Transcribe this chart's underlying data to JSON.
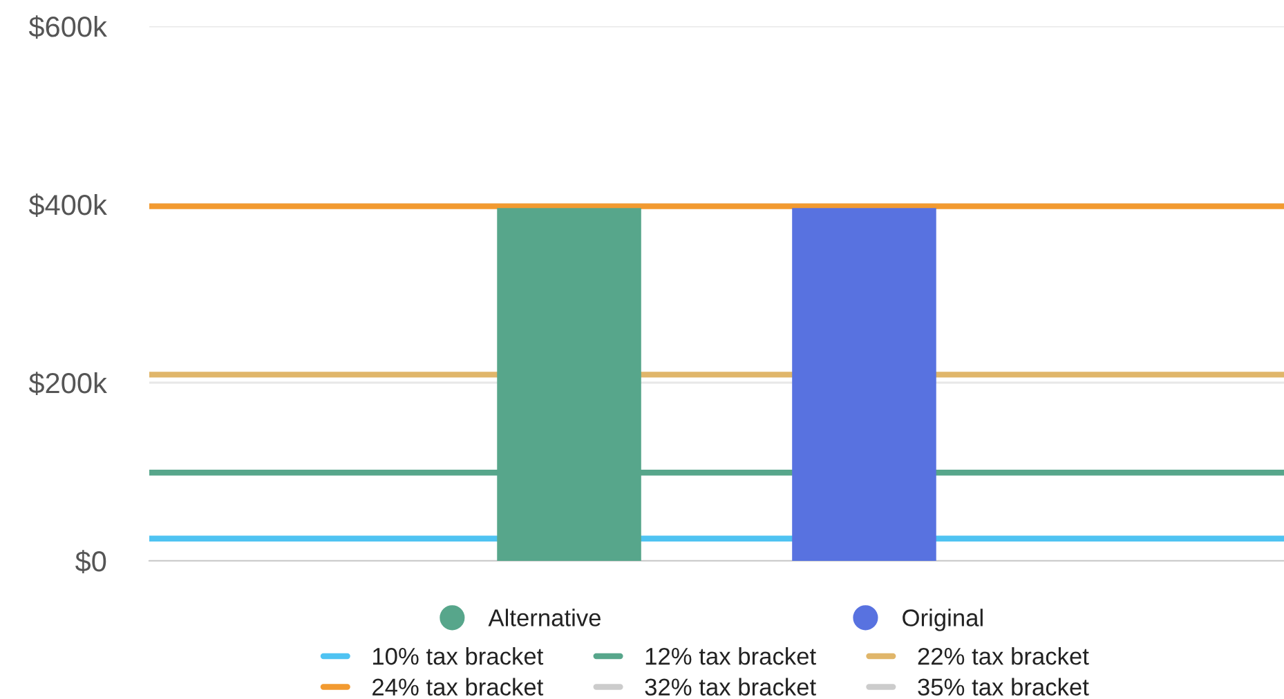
{
  "chart_data": {
    "type": "bar",
    "categories": [
      null
    ],
    "series": [
      {
        "name": "Alternative",
        "color": "#57a68b",
        "values": [
          396000
        ]
      },
      {
        "name": "Original",
        "color": "#5872e0",
        "values": [
          396000
        ]
      }
    ],
    "ylim": [
      0,
      600000
    ],
    "yticks": [
      {
        "value": 0,
        "label": "$0"
      },
      {
        "value": 200000,
        "label": "$200k"
      },
      {
        "value": 400000,
        "label": "$400k"
      },
      {
        "value": 600000,
        "label": "$600k"
      }
    ],
    "grid": "y",
    "legend": "bottom",
    "ref_lines": [
      {
        "axis": "y",
        "value": 25000,
        "label": "10% tax bracket",
        "color": "#4fc3f2"
      },
      {
        "axis": "y",
        "value": 99000,
        "label": "12% tax bracket",
        "color": "#57a68b"
      },
      {
        "axis": "y",
        "value": 209000,
        "label": "22% tax bracket",
        "color": "#e0b66a"
      },
      {
        "axis": "y",
        "value": 398000,
        "label": "24% tax bracket",
        "color": "#f29a30"
      },
      {
        "axis": "y",
        "value": null,
        "label": "32% tax bracket",
        "color": "#cccccc"
      },
      {
        "axis": "y",
        "value": null,
        "label": "35% tax bracket",
        "color": "#cccccc"
      }
    ]
  }
}
